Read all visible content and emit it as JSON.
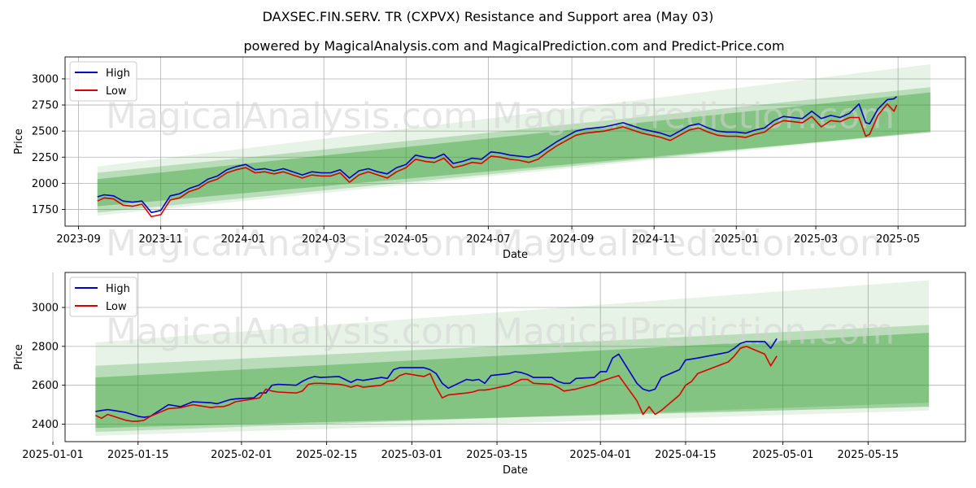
{
  "title": "DAXSEC.FIN.SERV. TR (CXPVX) Resistance and Support area (May 03)",
  "subtitle": "powered by MagicalAnalysis.com and MagicalPrediction.com and Predict-Price.com",
  "watermarks": [
    "MagicalAnalysis.com",
    "MagicalPrediction.com"
  ],
  "colors": {
    "high": "#0000cc",
    "low": "#dd0000",
    "band": "#2e9a2e",
    "grid": "#b0b0b0"
  },
  "chart_data": [
    {
      "type": "line",
      "xlabel": "Date",
      "ylabel": "Price",
      "xlim": [
        "2023-08-22",
        "2025-06-20"
      ],
      "ylim": [
        1590,
        3210
      ],
      "grid": true,
      "legend_position": "top-left",
      "x_ticks": [
        "2023-09",
        "2023-11",
        "2024-01",
        "2024-03",
        "2024-05",
        "2024-07",
        "2024-09",
        "2024-11",
        "2025-01",
        "2025-03",
        "2025-05"
      ],
      "y_ticks": [
        1750,
        2000,
        2250,
        2500,
        2750,
        3000
      ],
      "bands": [
        {
          "x": [
            "2023-09-15",
            "2025-05-25"
          ],
          "upper": [
            2160,
            3140
          ],
          "lower": [
            1690,
            2490
          ],
          "opacity": 0.12
        },
        {
          "x": [
            "2023-09-15",
            "2025-05-25"
          ],
          "upper": [
            2100,
            2920
          ],
          "lower": [
            1720,
            2500
          ],
          "opacity": 0.25
        },
        {
          "x": [
            "2023-09-15",
            "2025-05-25"
          ],
          "upper": [
            2040,
            2870
          ],
          "lower": [
            1780,
            2490
          ],
          "opacity": 0.38
        }
      ],
      "series": [
        {
          "name": "High",
          "x": [
            "2023-09-15",
            "2023-09-20",
            "2023-09-27",
            "2023-10-04",
            "2023-10-11",
            "2023-10-18",
            "2023-10-25",
            "2023-11-01",
            "2023-11-08",
            "2023-11-15",
            "2023-11-22",
            "2023-11-29",
            "2023-12-06",
            "2023-12-13",
            "2023-12-20",
            "2023-12-27",
            "2024-01-03",
            "2024-01-10",
            "2024-01-17",
            "2024-01-24",
            "2024-01-31",
            "2024-02-07",
            "2024-02-14",
            "2024-02-21",
            "2024-02-28",
            "2024-03-06",
            "2024-03-13",
            "2024-03-20",
            "2024-03-27",
            "2024-04-03",
            "2024-04-10",
            "2024-04-17",
            "2024-04-24",
            "2024-05-01",
            "2024-05-08",
            "2024-05-15",
            "2024-05-22",
            "2024-05-29",
            "2024-06-05",
            "2024-06-12",
            "2024-06-19",
            "2024-06-26",
            "2024-07-03",
            "2024-07-10",
            "2024-07-17",
            "2024-07-24",
            "2024-07-31",
            "2024-08-07",
            "2024-08-14",
            "2024-08-21",
            "2024-08-28",
            "2024-09-04",
            "2024-09-11",
            "2024-09-18",
            "2024-09-25",
            "2024-10-02",
            "2024-10-09",
            "2024-10-16",
            "2024-10-23",
            "2024-10-30",
            "2024-11-06",
            "2024-11-13",
            "2024-11-20",
            "2024-11-27",
            "2024-12-04",
            "2024-12-11",
            "2024-12-18",
            "2024-12-25",
            "2025-01-01",
            "2025-01-08",
            "2025-01-15",
            "2025-01-22",
            "2025-01-29",
            "2025-02-05",
            "2025-02-12",
            "2025-02-19",
            "2025-02-26",
            "2025-03-05",
            "2025-03-12",
            "2025-03-19",
            "2025-03-26",
            "2025-04-02",
            "2025-04-07",
            "2025-04-10",
            "2025-04-16",
            "2025-04-23",
            "2025-04-28",
            "2025-04-30"
          ],
          "values": [
            1870,
            1890,
            1880,
            1830,
            1820,
            1830,
            1720,
            1740,
            1880,
            1900,
            1950,
            1980,
            2040,
            2070,
            2130,
            2160,
            2180,
            2130,
            2140,
            2120,
            2140,
            2110,
            2080,
            2110,
            2100,
            2100,
            2130,
            2050,
            2120,
            2140,
            2110,
            2090,
            2150,
            2180,
            2270,
            2250,
            2240,
            2280,
            2190,
            2210,
            2240,
            2230,
            2300,
            2290,
            2270,
            2260,
            2250,
            2280,
            2340,
            2400,
            2450,
            2500,
            2520,
            2530,
            2540,
            2560,
            2580,
            2550,
            2520,
            2500,
            2480,
            2450,
            2500,
            2550,
            2570,
            2530,
            2500,
            2490,
            2490,
            2480,
            2510,
            2530,
            2600,
            2640,
            2630,
            2620,
            2690,
            2620,
            2650,
            2630,
            2670,
            2760,
            2580,
            2570,
            2710,
            2800,
            2810,
            2830
          ]
        },
        {
          "name": "Low",
          "x": [
            "2023-09-15",
            "2023-09-20",
            "2023-09-27",
            "2023-10-04",
            "2023-10-11",
            "2023-10-18",
            "2023-10-25",
            "2023-11-01",
            "2023-11-08",
            "2023-11-15",
            "2023-11-22",
            "2023-11-29",
            "2023-12-06",
            "2023-12-13",
            "2023-12-20",
            "2023-12-27",
            "2024-01-03",
            "2024-01-10",
            "2024-01-17",
            "2024-01-24",
            "2024-01-31",
            "2024-02-07",
            "2024-02-14",
            "2024-02-21",
            "2024-02-28",
            "2024-03-06",
            "2024-03-13",
            "2024-03-20",
            "2024-03-27",
            "2024-04-03",
            "2024-04-10",
            "2024-04-17",
            "2024-04-24",
            "2024-05-01",
            "2024-05-08",
            "2024-05-15",
            "2024-05-22",
            "2024-05-29",
            "2024-06-05",
            "2024-06-12",
            "2024-06-19",
            "2024-06-26",
            "2024-07-03",
            "2024-07-10",
            "2024-07-17",
            "2024-07-24",
            "2024-07-31",
            "2024-08-07",
            "2024-08-14",
            "2024-08-21",
            "2024-08-28",
            "2024-09-04",
            "2024-09-11",
            "2024-09-18",
            "2024-09-25",
            "2024-10-02",
            "2024-10-09",
            "2024-10-16",
            "2024-10-23",
            "2024-10-30",
            "2024-11-06",
            "2024-11-13",
            "2024-11-20",
            "2024-11-27",
            "2024-12-04",
            "2024-12-11",
            "2024-12-18",
            "2024-12-25",
            "2025-01-01",
            "2025-01-08",
            "2025-01-15",
            "2025-01-22",
            "2025-01-29",
            "2025-02-05",
            "2025-02-12",
            "2025-02-19",
            "2025-02-26",
            "2025-03-05",
            "2025-03-12",
            "2025-03-19",
            "2025-03-26",
            "2025-04-02",
            "2025-04-07",
            "2025-04-10",
            "2025-04-16",
            "2025-04-23",
            "2025-04-28",
            "2025-04-30"
          ],
          "values": [
            1830,
            1860,
            1850,
            1790,
            1780,
            1800,
            1680,
            1700,
            1840,
            1860,
            1920,
            1950,
            2010,
            2040,
            2100,
            2130,
            2150,
            2100,
            2110,
            2090,
            2110,
            2080,
            2050,
            2080,
            2070,
            2070,
            2100,
            2010,
            2080,
            2110,
            2080,
            2050,
            2110,
            2150,
            2230,
            2210,
            2200,
            2240,
            2150,
            2170,
            2200,
            2190,
            2260,
            2250,
            2230,
            2220,
            2200,
            2230,
            2300,
            2360,
            2410,
            2460,
            2480,
            2490,
            2500,
            2520,
            2540,
            2510,
            2480,
            2460,
            2440,
            2410,
            2460,
            2510,
            2530,
            2490,
            2460,
            2450,
            2450,
            2440,
            2470,
            2490,
            2560,
            2600,
            2590,
            2580,
            2640,
            2540,
            2600,
            2590,
            2630,
            2630,
            2450,
            2470,
            2650,
            2760,
            2690,
            2750
          ]
        }
      ]
    },
    {
      "type": "line",
      "xlabel": "Date",
      "ylabel": "Price",
      "xlim": [
        "2025-01-03",
        "2025-05-31"
      ],
      "ylim": [
        2310,
        3180
      ],
      "grid": true,
      "legend_position": "top-left",
      "x_ticks": [
        "2025-01-01",
        "2025-01-15",
        "2025-02-01",
        "2025-02-15",
        "2025-03-01",
        "2025-03-15",
        "2025-04-01",
        "2025-04-15",
        "2025-05-01",
        "2025-05-15"
      ],
      "y_ticks": [
        2400,
        2600,
        2800,
        3000
      ],
      "bands": [
        {
          "x": [
            "2025-01-08",
            "2025-05-25"
          ],
          "upper": [
            2820,
            3140
          ],
          "lower": [
            2340,
            2470
          ],
          "opacity": 0.12
        },
        {
          "x": [
            "2025-01-08",
            "2025-05-25"
          ],
          "upper": [
            2700,
            2910
          ],
          "lower": [
            2360,
            2510
          ],
          "opacity": 0.25
        },
        {
          "x": [
            "2025-01-08",
            "2025-05-25"
          ],
          "upper": [
            2640,
            2870
          ],
          "lower": [
            2380,
            2490
          ],
          "opacity": 0.38
        }
      ],
      "series": [
        {
          "name": "High",
          "x": [
            "2025-01-08",
            "2025-01-09",
            "2025-01-10",
            "2025-01-13",
            "2025-01-14",
            "2025-01-15",
            "2025-01-16",
            "2025-01-17",
            "2025-01-20",
            "2025-01-22",
            "2025-01-24",
            "2025-01-27",
            "2025-01-28",
            "2025-01-29",
            "2025-01-30",
            "2025-01-31",
            "2025-02-03",
            "2025-02-04",
            "2025-02-05",
            "2025-02-06",
            "2025-02-07",
            "2025-02-10",
            "2025-02-11",
            "2025-02-12",
            "2025-02-13",
            "2025-02-14",
            "2025-02-17",
            "2025-02-18",
            "2025-02-19",
            "2025-02-20",
            "2025-02-21",
            "2025-02-24",
            "2025-02-25",
            "2025-02-26",
            "2025-02-27",
            "2025-02-28",
            "2025-03-03",
            "2025-03-04",
            "2025-03-05",
            "2025-03-06",
            "2025-03-07",
            "2025-03-10",
            "2025-03-11",
            "2025-03-12",
            "2025-03-13",
            "2025-03-14",
            "2025-03-17",
            "2025-03-18",
            "2025-03-19",
            "2025-03-20",
            "2025-03-21",
            "2025-03-24",
            "2025-03-25",
            "2025-03-26",
            "2025-03-27",
            "2025-03-28",
            "2025-03-31",
            "2025-04-01",
            "2025-04-02",
            "2025-04-03",
            "2025-04-04",
            "2025-04-07",
            "2025-04-08",
            "2025-04-09",
            "2025-04-10",
            "2025-04-11",
            "2025-04-14",
            "2025-04-15",
            "2025-04-16",
            "2025-04-17",
            "2025-04-22",
            "2025-04-23",
            "2025-04-24",
            "2025-04-25",
            "2025-04-28",
            "2025-04-29",
            "2025-04-30"
          ],
          "values": [
            2465,
            2470,
            2475,
            2460,
            2450,
            2440,
            2435,
            2440,
            2500,
            2490,
            2515,
            2510,
            2505,
            2515,
            2525,
            2530,
            2535,
            2560,
            2560,
            2600,
            2605,
            2600,
            2620,
            2635,
            2645,
            2640,
            2645,
            2630,
            2615,
            2630,
            2625,
            2640,
            2635,
            2680,
            2690,
            2690,
            2690,
            2680,
            2660,
            2610,
            2585,
            2630,
            2625,
            2630,
            2610,
            2650,
            2660,
            2670,
            2665,
            2655,
            2640,
            2640,
            2620,
            2610,
            2610,
            2635,
            2640,
            2670,
            2670,
            2740,
            2760,
            2610,
            2580,
            2570,
            2580,
            2640,
            2680,
            2730,
            2735,
            2740,
            2770,
            2790,
            2815,
            2825,
            2825,
            2790,
            2840
          ]
        },
        {
          "name": "Low",
          "x": [
            "2025-01-08",
            "2025-01-09",
            "2025-01-10",
            "2025-01-13",
            "2025-01-14",
            "2025-01-15",
            "2025-01-16",
            "2025-01-17",
            "2025-01-20",
            "2025-01-22",
            "2025-01-24",
            "2025-01-27",
            "2025-01-28",
            "2025-01-29",
            "2025-01-30",
            "2025-01-31",
            "2025-02-03",
            "2025-02-04",
            "2025-02-05",
            "2025-02-06",
            "2025-02-07",
            "2025-02-10",
            "2025-02-11",
            "2025-02-12",
            "2025-02-13",
            "2025-02-14",
            "2025-02-17",
            "2025-02-18",
            "2025-02-19",
            "2025-02-20",
            "2025-02-21",
            "2025-02-24",
            "2025-02-25",
            "2025-02-26",
            "2025-02-27",
            "2025-02-28",
            "2025-03-03",
            "2025-03-04",
            "2025-03-05",
            "2025-03-06",
            "2025-03-07",
            "2025-03-10",
            "2025-03-11",
            "2025-03-12",
            "2025-03-13",
            "2025-03-14",
            "2025-03-17",
            "2025-03-18",
            "2025-03-19",
            "2025-03-20",
            "2025-03-21",
            "2025-03-24",
            "2025-03-25",
            "2025-03-26",
            "2025-03-27",
            "2025-03-28",
            "2025-03-31",
            "2025-04-01",
            "2025-04-02",
            "2025-04-03",
            "2025-04-04",
            "2025-04-07",
            "2025-04-08",
            "2025-04-09",
            "2025-04-10",
            "2025-04-11",
            "2025-04-14",
            "2025-04-15",
            "2025-04-16",
            "2025-04-17",
            "2025-04-22",
            "2025-04-23",
            "2025-04-24",
            "2025-04-25",
            "2025-04-28",
            "2025-04-29",
            "2025-04-30"
          ],
          "values": [
            2445,
            2430,
            2450,
            2420,
            2415,
            2415,
            2420,
            2440,
            2480,
            2485,
            2500,
            2485,
            2490,
            2490,
            2500,
            2515,
            2530,
            2535,
            2580,
            2570,
            2565,
            2560,
            2570,
            2605,
            2610,
            2610,
            2605,
            2600,
            2590,
            2600,
            2590,
            2600,
            2620,
            2625,
            2650,
            2660,
            2645,
            2660,
            2590,
            2535,
            2550,
            2560,
            2565,
            2575,
            2575,
            2580,
            2600,
            2615,
            2630,
            2630,
            2610,
            2605,
            2590,
            2570,
            2575,
            2580,
            2605,
            2620,
            2630,
            2640,
            2650,
            2520,
            2450,
            2490,
            2450,
            2470,
            2550,
            2600,
            2620,
            2660,
            2720,
            2750,
            2790,
            2800,
            2760,
            2700,
            2750
          ]
        }
      ]
    }
  ]
}
